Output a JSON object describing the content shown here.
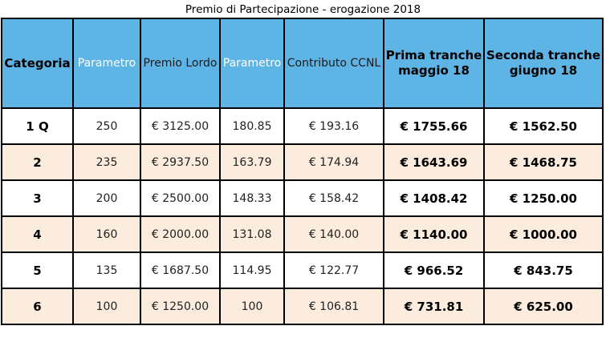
{
  "title": "Premio di Partecipazione - erogazione 2018",
  "headers": [
    "Categoria",
    "Parametro",
    "Premio Lordo",
    "Parametro",
    "Contributo CCNL",
    "Prima tranche maggio 18",
    "Seconda tranche giugno 18"
  ],
  "rows": [
    [
      "1 Q",
      "250",
      "€ 3125.00",
      "180.85",
      "€ 193.16",
      "€ 1755.66",
      "€ 1562.50"
    ],
    [
      "2",
      "235",
      "€ 2937.50",
      "163.79",
      "€ 174.94",
      "€ 1643.69",
      "€ 1468.75"
    ],
    [
      "3",
      "200",
      "€ 2500.00",
      "148.33",
      "€ 158.42",
      "€ 1408.42",
      "€ 1250.00"
    ],
    [
      "4",
      "160",
      "€ 2000.00",
      "131.08",
      "€ 140.00",
      "€ 1140.00",
      "€ 1000.00"
    ],
    [
      "5",
      "135",
      "€ 1687.50",
      "114.95",
      "€ 122.77",
      "€ 966.52",
      "€ 843.75"
    ],
    [
      "6",
      "100",
      "€ 1250.00",
      "100",
      "€ 106.81",
      "€ 731.81",
      "€ 625.00"
    ]
  ],
  "colors": {
    "header_bg": "#5fb4e6",
    "row_alt_bg": "#fcecdd",
    "row_bg": "#ffffff",
    "parametro_header_text": "#ffffff"
  }
}
